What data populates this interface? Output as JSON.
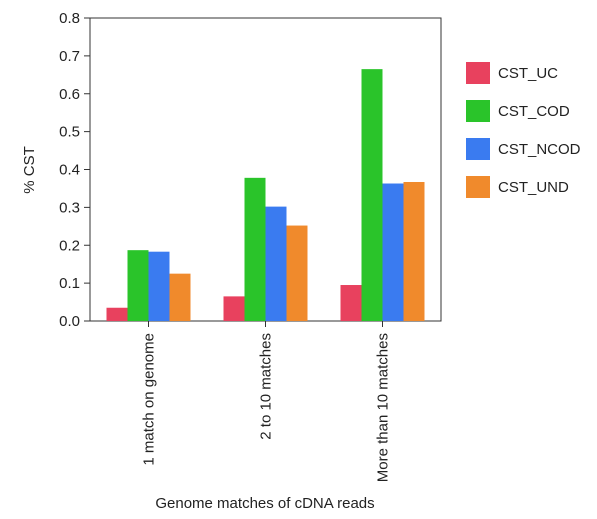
{
  "chart_data": {
    "type": "bar",
    "xlabel": "Genome matches of cDNA reads",
    "ylabel": "% CST",
    "ylim": [
      0,
      0.8
    ],
    "yticks": [
      "0.0",
      "0.1",
      "0.2",
      "0.3",
      "0.4",
      "0.5",
      "0.6",
      "0.7",
      "0.8"
    ],
    "categories": [
      "1 match on genome",
      "2 to 10 matches",
      "More than 10 matches"
    ],
    "series": [
      {
        "name": "CST_UC",
        "color": "#e8415e",
        "values": [
          0.035,
          0.065,
          0.095
        ]
      },
      {
        "name": "CST_COD",
        "color": "#2ac42a",
        "values": [
          0.187,
          0.378,
          0.665
        ]
      },
      {
        "name": "CST_NCOD",
        "color": "#3a7bf0",
        "values": [
          0.183,
          0.302,
          0.363
        ]
      },
      {
        "name": "CST_UND",
        "color": "#f08a2c",
        "values": [
          0.125,
          0.252,
          0.367
        ]
      }
    ],
    "grid": false,
    "legend_position": "right"
  }
}
